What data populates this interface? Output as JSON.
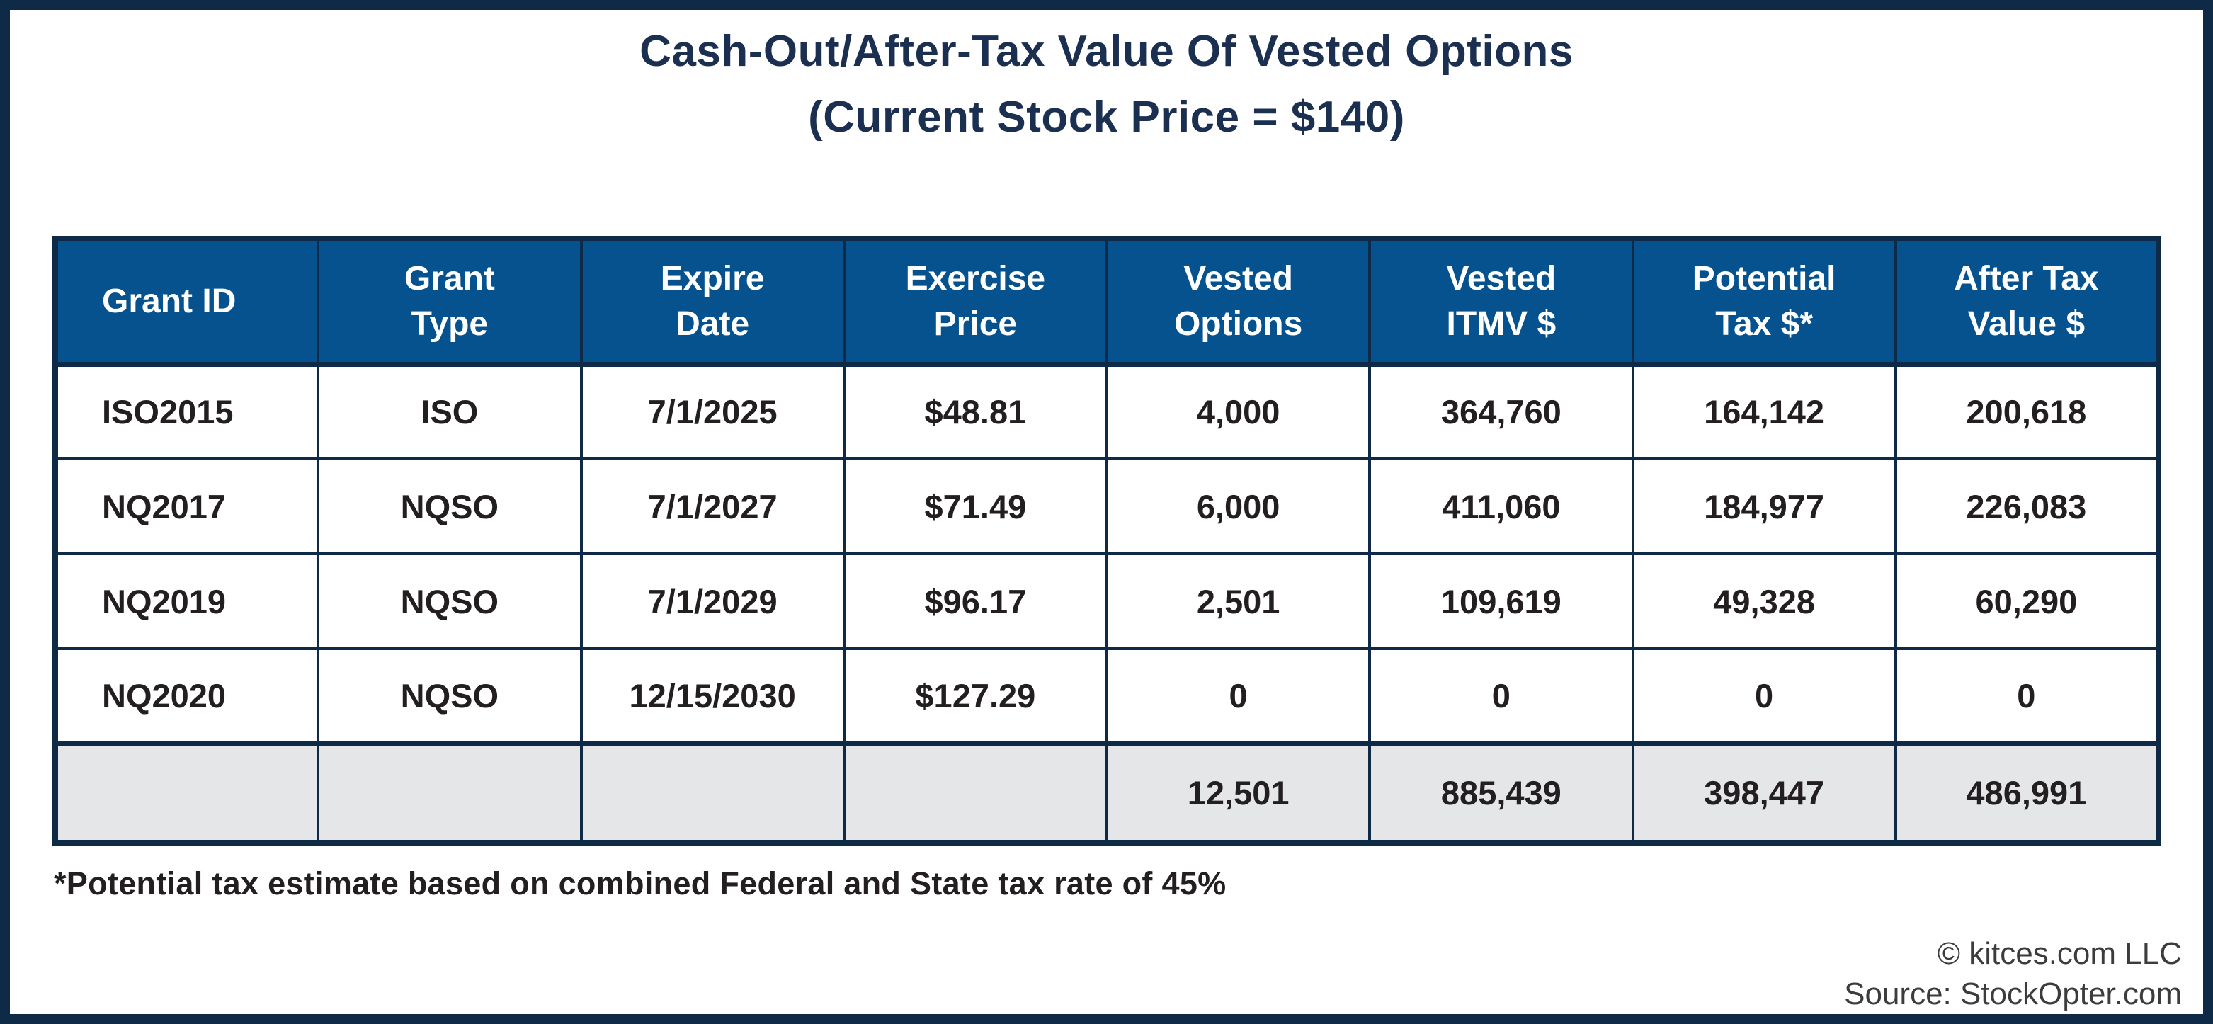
{
  "title": {
    "line1": "Cash-Out/After-Tax Value Of Vested Options",
    "line2": "(Current Stock Price = $140)"
  },
  "chart_data": {
    "type": "table",
    "title": "Cash-Out/After-Tax Value Of Vested Options",
    "subtitle": "(Current Stock Price = $140)",
    "current_stock_price": "$140",
    "columns": [
      "Grant ID",
      "Grant Type",
      "Expire Date",
      "Exercise Price",
      "Vested Options",
      "Vested ITMV $",
      "Potential Tax $*",
      "After Tax Value $"
    ],
    "header_display": [
      "Grant ID",
      "Grant\nType",
      "Expire\nDate",
      "Exercise\nPrice",
      "Vested\nOptions",
      "Vested\nITMV $",
      "Potential\nTax $*",
      "After Tax\nValue $"
    ],
    "rows": [
      [
        "ISO2015",
        "ISO",
        "7/1/2025",
        "$48.81",
        "4,000",
        "364,760",
        "164,142",
        "200,618"
      ],
      [
        "NQ2017",
        "NQSO",
        "7/1/2027",
        "$71.49",
        "6,000",
        "411,060",
        "184,977",
        "226,083"
      ],
      [
        "NQ2019",
        "NQSO",
        "7/1/2029",
        "$96.17",
        "2,501",
        "109,619",
        "49,328",
        "60,290"
      ],
      [
        "NQ2020",
        "NQSO",
        "12/15/2030",
        "$127.29",
        "0",
        "0",
        "0",
        "0"
      ]
    ],
    "totals_row": [
      "",
      "",
      "",
      "",
      "12,501",
      "885,439",
      "398,447",
      "486,991"
    ]
  },
  "footnote": "*Potential tax estimate based on combined Federal and State tax rate of 45%",
  "attribution": {
    "copyright": "© kitces.com LLC",
    "source": "Source: StockOpter.com"
  },
  "colors": {
    "frame_navy": "#0F2A47",
    "header_blue": "#05528F",
    "title_navy": "#1B2F50",
    "totals_row_gray": "#E4E6E8",
    "body_text": "#231F20"
  }
}
